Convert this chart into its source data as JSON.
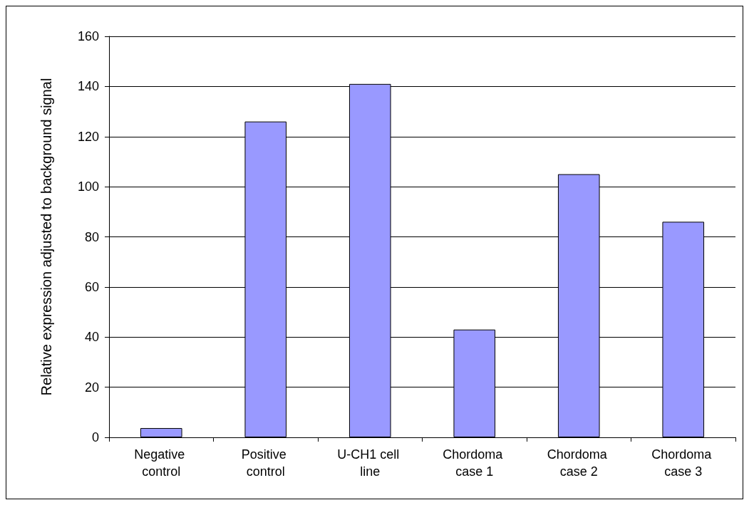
{
  "chart_data": {
    "type": "bar",
    "ylabel": "Relative expression adjusted to background signal",
    "categories": [
      "Negative control",
      "Positive control",
      "U-CH1 cell line",
      "Chordoma case 1",
      "Chordoma case 2",
      "Chordoma case 3"
    ],
    "values": [
      3.7,
      126,
      141,
      43,
      105,
      86
    ],
    "color": "#9999ff",
    "ylim": [
      0,
      160
    ],
    "yticks": [
      0,
      20,
      40,
      60,
      80,
      100,
      120,
      140,
      160
    ],
    "grid": "y"
  }
}
